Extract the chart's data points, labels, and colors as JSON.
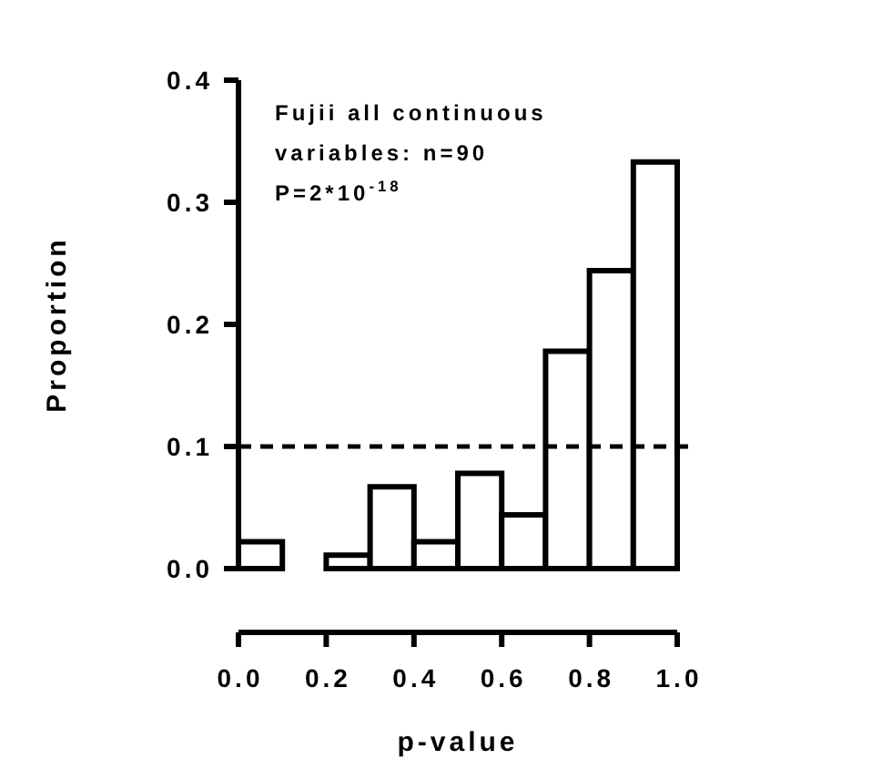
{
  "chart_data": {
    "type": "histogram",
    "xlabel": "p-value",
    "ylabel": "Proportion",
    "bins": [
      0,
      0.1,
      0.2,
      0.3,
      0.4,
      0.5,
      0.6,
      0.7,
      0.8,
      0.9,
      1.0
    ],
    "values": [
      0.022,
      0,
      0.011,
      0.067,
      0.022,
      0.078,
      0.044,
      0.178,
      0.244,
      0.333
    ],
    "color": "#ffffff",
    "xlim": [
      0,
      1
    ],
    "xticks": [
      "0.0",
      0.2,
      0.4,
      0.6,
      0.8,
      "1.0"
    ],
    "ylim": [
      0,
      0.4
    ],
    "yticks": [
      "0.0",
      0.1,
      0.2,
      0.3,
      0.4
    ],
    "ref_lines": [
      {
        "axis": "y",
        "value": 0.1,
        "line_style": "dashed",
        "color": "#000000"
      }
    ],
    "annotations": [
      "Fujii all continuous variables: n=90",
      "P=2*10$^{-18}$"
    ],
    "grid": false
  }
}
